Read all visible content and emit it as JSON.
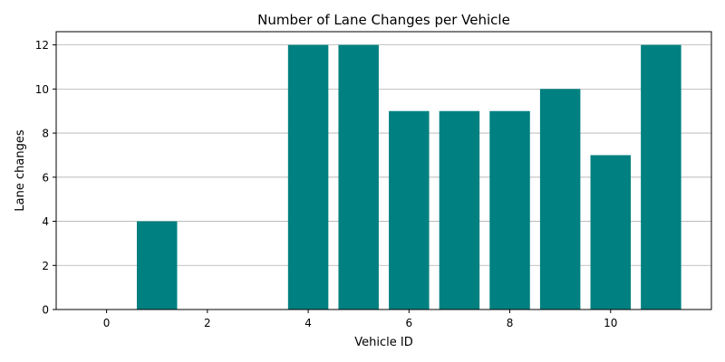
{
  "chart_data": {
    "type": "bar",
    "title": "Number of Lane Changes per Vehicle",
    "xlabel": "Vehicle ID",
    "ylabel": "Lane changes",
    "x": [
      0,
      1,
      2,
      3,
      4,
      5,
      6,
      7,
      8,
      9,
      10,
      11
    ],
    "values": [
      0,
      4,
      0,
      0,
      12,
      12,
      9,
      9,
      9,
      10,
      7,
      12
    ],
    "xlim": [
      -1,
      12
    ],
    "ylim": [
      0,
      12.6
    ],
    "xticks": [
      0,
      2,
      4,
      6,
      8,
      10
    ],
    "yticks": [
      0,
      2,
      4,
      6,
      8,
      10,
      12
    ],
    "grid": "y",
    "bar_color": "#008080",
    "grid_color": "#b0b0b0"
  }
}
